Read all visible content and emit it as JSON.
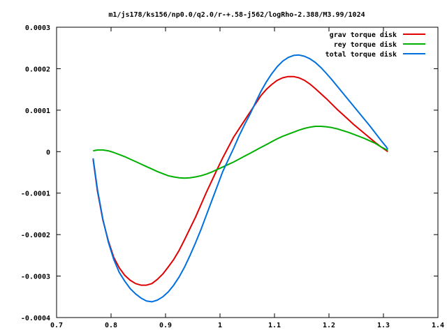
{
  "chart_data": {
    "type": "line",
    "title": "m1/js178/ks156/np0.0/q2.0/r-+.58-j562/logRho-2.388/M3.99/1024",
    "xlabel": "",
    "ylabel": "",
    "xlim": [
      0.7,
      1.4
    ],
    "ylim": [
      -0.0004,
      0.0003
    ],
    "x_ticks": [
      {
        "value": 0.7,
        "label": "0.7"
      },
      {
        "value": 0.8,
        "label": "0.8"
      },
      {
        "value": 0.9,
        "label": "0.9"
      },
      {
        "value": 1.0,
        "label": "1"
      },
      {
        "value": 1.1,
        "label": "1.1"
      },
      {
        "value": 1.2,
        "label": "1.2"
      },
      {
        "value": 1.3,
        "label": "1.3"
      },
      {
        "value": 1.4,
        "label": "1.4"
      }
    ],
    "y_ticks": [
      {
        "value": 0.0003,
        "label": "0.0003"
      },
      {
        "value": 0.0002,
        "label": "0.0002"
      },
      {
        "value": 0.0001,
        "label": "0.0001"
      },
      {
        "value": 0,
        "label": "0"
      },
      {
        "value": -0.0001,
        "label": "-0.0001"
      },
      {
        "value": -0.0002,
        "label": "-0.0002"
      },
      {
        "value": -0.0003,
        "label": "-0.0003"
      },
      {
        "value": -0.0004,
        "label": "-0.0004"
      }
    ],
    "grid": false,
    "legend_position": "top-right",
    "series": [
      {
        "name": "grav torque disk",
        "color": "#e00000",
        "points": [
          [
            0.767,
            -1.8e-05
          ],
          [
            0.775,
            -9.5e-05
          ],
          [
            0.785,
            -0.000165
          ],
          [
            0.795,
            -0.000215
          ],
          [
            0.805,
            -0.000255
          ],
          [
            0.815,
            -0.00028
          ],
          [
            0.825,
            -0.000298
          ],
          [
            0.835,
            -0.00031
          ],
          [
            0.845,
            -0.000318
          ],
          [
            0.855,
            -0.000322
          ],
          [
            0.865,
            -0.000322
          ],
          [
            0.875,
            -0.000318
          ],
          [
            0.885,
            -0.000308
          ],
          [
            0.895,
            -0.000295
          ],
          [
            0.905,
            -0.000278
          ],
          [
            0.915,
            -0.00026
          ],
          [
            0.925,
            -0.000238
          ],
          [
            0.935,
            -0.000212
          ],
          [
            0.945,
            -0.000185
          ],
          [
            0.955,
            -0.000158
          ],
          [
            0.965,
            -0.000128
          ],
          [
            0.975,
            -9.8e-05
          ],
          [
            0.985,
            -7e-05
          ],
          [
            0.995,
            -4.2e-05
          ],
          [
            1.005,
            -1.5e-05
          ],
          [
            1.015,
            1e-05
          ],
          [
            1.025,
            3.5e-05
          ],
          [
            1.035,
            5.5e-05
          ],
          [
            1.045,
            7.5e-05
          ],
          [
            1.055,
            9.5e-05
          ],
          [
            1.065,
            0.000115
          ],
          [
            1.075,
            0.000135
          ],
          [
            1.085,
            0.00015
          ],
          [
            1.095,
            0.000162
          ],
          [
            1.105,
            0.000172
          ],
          [
            1.115,
            0.000178
          ],
          [
            1.125,
            0.000181
          ],
          [
            1.135,
            0.000181
          ],
          [
            1.145,
            0.000178
          ],
          [
            1.155,
            0.000172
          ],
          [
            1.165,
            0.000163
          ],
          [
            1.175,
            0.000152
          ],
          [
            1.185,
            0.00014
          ],
          [
            1.195,
            0.000128
          ],
          [
            1.205,
            0.000115
          ],
          [
            1.215,
            0.000102
          ],
          [
            1.225,
            9e-05
          ],
          [
            1.235,
            7.8e-05
          ],
          [
            1.245,
            6.6e-05
          ],
          [
            1.255,
            5.5e-05
          ],
          [
            1.265,
            4.4e-05
          ],
          [
            1.275,
            3.3e-05
          ],
          [
            1.285,
            2.2e-05
          ],
          [
            1.295,
            1.2e-05
          ],
          [
            1.305,
            3e-06
          ],
          [
            1.308,
            0.0
          ]
        ]
      },
      {
        "name": "rey torque disk",
        "color": "#00b000",
        "points": [
          [
            0.767,
            2e-06
          ],
          [
            0.775,
            4e-06
          ],
          [
            0.785,
            4e-06
          ],
          [
            0.795,
            2e-06
          ],
          [
            0.805,
            -2e-06
          ],
          [
            0.815,
            -7e-06
          ],
          [
            0.825,
            -1.2e-05
          ],
          [
            0.835,
            -1.8e-05
          ],
          [
            0.845,
            -2.4e-05
          ],
          [
            0.855,
            -3e-05
          ],
          [
            0.865,
            -3.6e-05
          ],
          [
            0.875,
            -4.2e-05
          ],
          [
            0.885,
            -4.8e-05
          ],
          [
            0.895,
            -5.3e-05
          ],
          [
            0.905,
            -5.8e-05
          ],
          [
            0.915,
            -6.1e-05
          ],
          [
            0.925,
            -6.3e-05
          ],
          [
            0.935,
            -6.4e-05
          ],
          [
            0.945,
            -6.3e-05
          ],
          [
            0.955,
            -6.1e-05
          ],
          [
            0.965,
            -5.8e-05
          ],
          [
            0.975,
            -5.4e-05
          ],
          [
            0.985,
            -4.9e-05
          ],
          [
            0.995,
            -4.3e-05
          ],
          [
            1.005,
            -3.7e-05
          ],
          [
            1.015,
            -3.1e-05
          ],
          [
            1.025,
            -2.5e-05
          ],
          [
            1.035,
            -1.8e-05
          ],
          [
            1.045,
            -1.1e-05
          ],
          [
            1.055,
            -4e-06
          ],
          [
            1.065,
            3e-06
          ],
          [
            1.075,
            1e-05
          ],
          [
            1.085,
            1.7e-05
          ],
          [
            1.095,
            2.4e-05
          ],
          [
            1.105,
            3.1e-05
          ],
          [
            1.115,
            3.7e-05
          ],
          [
            1.125,
            4.2e-05
          ],
          [
            1.135,
            4.7e-05
          ],
          [
            1.145,
            5.2e-05
          ],
          [
            1.155,
            5.6e-05
          ],
          [
            1.165,
            5.9e-05
          ],
          [
            1.175,
            6.1e-05
          ],
          [
            1.185,
            6.1e-05
          ],
          [
            1.195,
            6e-05
          ],
          [
            1.205,
            5.8e-05
          ],
          [
            1.215,
            5.5e-05
          ],
          [
            1.225,
            5.1e-05
          ],
          [
            1.235,
            4.7e-05
          ],
          [
            1.245,
            4.2e-05
          ],
          [
            1.255,
            3.7e-05
          ],
          [
            1.265,
            3.2e-05
          ],
          [
            1.275,
            2.6e-05
          ],
          [
            1.285,
            2e-05
          ],
          [
            1.295,
            1.2e-05
          ],
          [
            1.305,
            5e-06
          ],
          [
            1.308,
            3e-06
          ]
        ]
      },
      {
        "name": "total torque disk",
        "color": "#0070e0",
        "points": [
          [
            0.767,
            -1.6e-05
          ],
          [
            0.775,
            -9.1e-05
          ],
          [
            0.785,
            -0.000163
          ],
          [
            0.795,
            -0.000218
          ],
          [
            0.805,
            -0.00026
          ],
          [
            0.815,
            -0.000291
          ],
          [
            0.825,
            -0.000312
          ],
          [
            0.835,
            -0.00033
          ],
          [
            0.845,
            -0.000343
          ],
          [
            0.855,
            -0.000353
          ],
          [
            0.865,
            -0.00036
          ],
          [
            0.875,
            -0.000362
          ],
          [
            0.885,
            -0.000358
          ],
          [
            0.895,
            -0.00035
          ],
          [
            0.905,
            -0.000338
          ],
          [
            0.915,
            -0.000322
          ],
          [
            0.925,
            -0.000302
          ],
          [
            0.935,
            -0.000278
          ],
          [
            0.945,
            -0.00025
          ],
          [
            0.955,
            -0.00022
          ],
          [
            0.965,
            -0.000188
          ],
          [
            0.975,
            -0.000153
          ],
          [
            0.985,
            -0.000118
          ],
          [
            0.995,
            -8.3e-05
          ],
          [
            1.005,
            -4.8e-05
          ],
          [
            1.015,
            -2e-05
          ],
          [
            1.025,
            8e-06
          ],
          [
            1.035,
            3.8e-05
          ],
          [
            1.045,
            6.5e-05
          ],
          [
            1.055,
            9e-05
          ],
          [
            1.065,
            0.000118
          ],
          [
            1.075,
            0.000145
          ],
          [
            1.085,
            0.000168
          ],
          [
            1.095,
            0.000188
          ],
          [
            1.105,
            0.000205
          ],
          [
            1.115,
            0.000218
          ],
          [
            1.125,
            0.000227
          ],
          [
            1.135,
            0.000232
          ],
          [
            1.145,
            0.000233
          ],
          [
            1.155,
            0.00023
          ],
          [
            1.165,
            0.000224
          ],
          [
            1.175,
            0.000215
          ],
          [
            1.185,
            0.000203
          ],
          [
            1.195,
            0.000189
          ],
          [
            1.205,
            0.000174
          ],
          [
            1.215,
            0.000158
          ],
          [
            1.225,
            0.000142
          ],
          [
            1.235,
            0.000126
          ],
          [
            1.245,
            0.00011
          ],
          [
            1.255,
            9.4e-05
          ],
          [
            1.265,
            7.8e-05
          ],
          [
            1.275,
            6.2e-05
          ],
          [
            1.285,
            4.5e-05
          ],
          [
            1.295,
            2.8e-05
          ],
          [
            1.305,
            1.2e-05
          ],
          [
            1.308,
            6e-06
          ]
        ]
      }
    ]
  }
}
